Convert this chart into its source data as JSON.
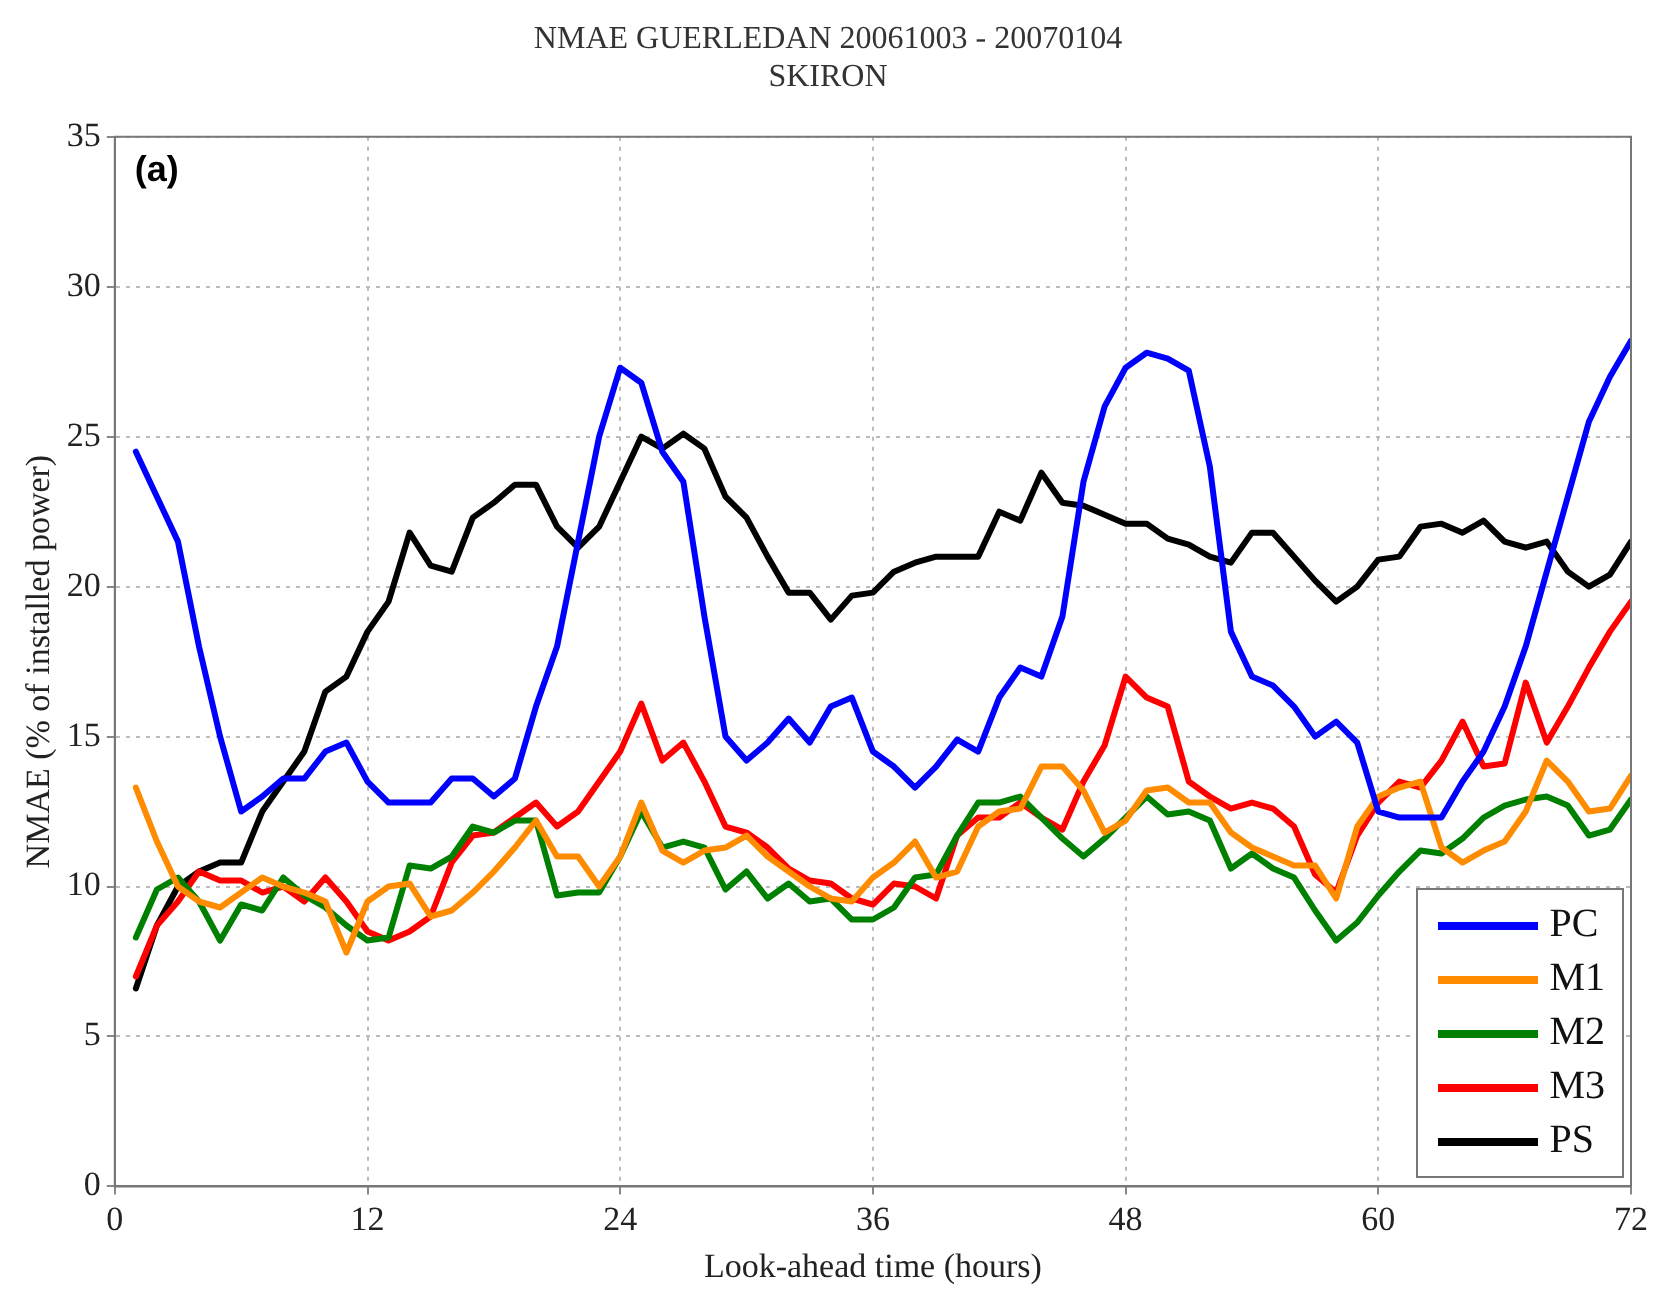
{
  "chart_data": {
    "type": "line",
    "title": "NMAE GUERLEDAN 20061003 - 20070104",
    "subtitle": "SKIRON",
    "xlabel": "Look-ahead time (hours)",
    "ylabel": "NMAE (% of installed power)",
    "annotations": [
      "(a)"
    ],
    "x": [
      1,
      2,
      3,
      4,
      5,
      6,
      7,
      8,
      9,
      10,
      11,
      12,
      13,
      14,
      15,
      16,
      17,
      18,
      19,
      20,
      21,
      22,
      23,
      24,
      25,
      26,
      27,
      28,
      29,
      30,
      31,
      32,
      33,
      34,
      35,
      36,
      37,
      38,
      39,
      40,
      41,
      42,
      43,
      44,
      45,
      46,
      47,
      48,
      49,
      50,
      51,
      52,
      53,
      54,
      55,
      56,
      57,
      58,
      59,
      60,
      61,
      62,
      63,
      64,
      65,
      66,
      67,
      68,
      69,
      70,
      71,
      72
    ],
    "series": [
      {
        "name": "PC",
        "color": "#0000ff",
        "values": [
          24.5,
          23,
          21.5,
          18,
          15,
          12.5,
          13,
          13.6,
          13.6,
          14.5,
          14.8,
          13.5,
          12.8,
          12.8,
          12.8,
          13.6,
          13.6,
          13,
          13.6,
          16,
          18,
          21.5,
          25,
          27.3,
          26.8,
          24.5,
          23.5,
          19,
          15,
          14.2,
          14.8,
          15.6,
          14.8,
          16,
          16.3,
          14.5,
          14,
          13.3,
          14,
          14.9,
          14.5,
          16.3,
          17.3,
          17,
          19,
          23.5,
          26,
          27.3,
          27.8,
          27.6,
          27.2,
          24,
          18.5,
          17,
          16.7,
          16,
          15,
          15.5,
          14.8,
          12.5,
          12.3,
          12.3,
          12.3,
          13.5,
          14.5,
          16,
          18,
          20.5,
          23,
          25.5,
          27,
          28.2
        ]
      },
      {
        "name": "M1",
        "color": "#ff8c00",
        "values": [
          13.3,
          11.5,
          10,
          9.5,
          9.3,
          9.8,
          10.3,
          10,
          9.8,
          9.5,
          7.8,
          9.5,
          10,
          10.1,
          9,
          9.2,
          9.8,
          10.5,
          11.3,
          12.2,
          11,
          11,
          10,
          11,
          12.8,
          11.2,
          10.8,
          11.2,
          11.3,
          11.7,
          11,
          10.5,
          10,
          9.6,
          9.5,
          10.3,
          10.8,
          11.5,
          10.3,
          10.5,
          12,
          12.5,
          12.6,
          14,
          14,
          13.2,
          11.8,
          12.2,
          13.2,
          13.3,
          12.8,
          12.8,
          11.8,
          11.3,
          11,
          10.7,
          10.7,
          9.6,
          12,
          13,
          13.3,
          13.5,
          11.3,
          10.8,
          11.2,
          11.5,
          12.5,
          14.2,
          13.5,
          12.5,
          12.6,
          13.7
        ]
      },
      {
        "name": "M2",
        "color": "#008000",
        "values": [
          8.3,
          9.9,
          10.3,
          9.5,
          8.2,
          9.4,
          9.2,
          10.3,
          9.7,
          9.3,
          8.7,
          8.2,
          8.3,
          10.7,
          10.6,
          11,
          12,
          11.8,
          12.2,
          12.2,
          9.7,
          9.8,
          9.8,
          11,
          12.5,
          11.3,
          11.5,
          11.3,
          9.9,
          10.5,
          9.6,
          10.1,
          9.5,
          9.6,
          8.9,
          8.9,
          9.3,
          10.3,
          10.4,
          11.7,
          12.8,
          12.8,
          13,
          12.3,
          11.6,
          11,
          11.6,
          12.3,
          13,
          12.4,
          12.5,
          12.2,
          10.6,
          11.1,
          10.6,
          10.3,
          9.2,
          8.2,
          8.8,
          9.7,
          10.5,
          11.2,
          11.1,
          11.6,
          12.3,
          12.7,
          12.9,
          13,
          12.7,
          11.7,
          11.9,
          12.9
        ]
      },
      {
        "name": "M3",
        "color": "#ff0000",
        "values": [
          7,
          8.7,
          9.5,
          10.5,
          10.2,
          10.2,
          9.8,
          10,
          9.5,
          10.3,
          9.5,
          8.5,
          8.2,
          8.5,
          9,
          10.8,
          11.7,
          11.8,
          12.3,
          12.8,
          12,
          12.5,
          13.5,
          14.5,
          16.1,
          14.2,
          14.8,
          13.5,
          12,
          11.8,
          11.3,
          10.6,
          10.2,
          10.1,
          9.6,
          9.4,
          10.1,
          10,
          9.6,
          11.7,
          12.3,
          12.3,
          12.8,
          12.3,
          11.9,
          13.5,
          14.7,
          17,
          16.3,
          16,
          13.5,
          13,
          12.6,
          12.8,
          12.6,
          12,
          10.4,
          9.8,
          11.7,
          12.8,
          13.5,
          13.3,
          14.2,
          15.5,
          14,
          14.1,
          16.8,
          14.8,
          16,
          17.3,
          18.5,
          19.5
        ]
      },
      {
        "name": "PS",
        "color": "#000000",
        "values": [
          6.6,
          8.7,
          10,
          10.5,
          10.8,
          10.8,
          12.5,
          13.5,
          14.5,
          16.5,
          17,
          18.5,
          19.5,
          21.8,
          20.7,
          20.5,
          22.3,
          22.8,
          23.4,
          23.4,
          22,
          21.3,
          22,
          23.5,
          25,
          24.6,
          25.1,
          24.6,
          23,
          22.3,
          21,
          19.8,
          19.8,
          18.9,
          19.7,
          19.8,
          20.5,
          20.8,
          21,
          21,
          21,
          22.5,
          22.2,
          23.8,
          22.8,
          22.7,
          22.4,
          22.1,
          22.1,
          21.6,
          21.4,
          21,
          20.8,
          21.8,
          21.8,
          21,
          20.2,
          19.5,
          20,
          20.9,
          21,
          22,
          22.1,
          21.8,
          22.2,
          21.5,
          21.3,
          21.5,
          20.5,
          20,
          20.4,
          21.5
        ]
      }
    ],
    "xlim": [
      0,
      72
    ],
    "xticks": [
      0,
      12,
      24,
      36,
      48,
      60,
      72
    ],
    "ylim": [
      0,
      35
    ],
    "yticks": [
      0,
      5,
      10,
      15,
      20,
      25,
      30,
      35
    ],
    "grid": true,
    "legend": "bottom right",
    "marker": "none",
    "line_style": "solid"
  }
}
